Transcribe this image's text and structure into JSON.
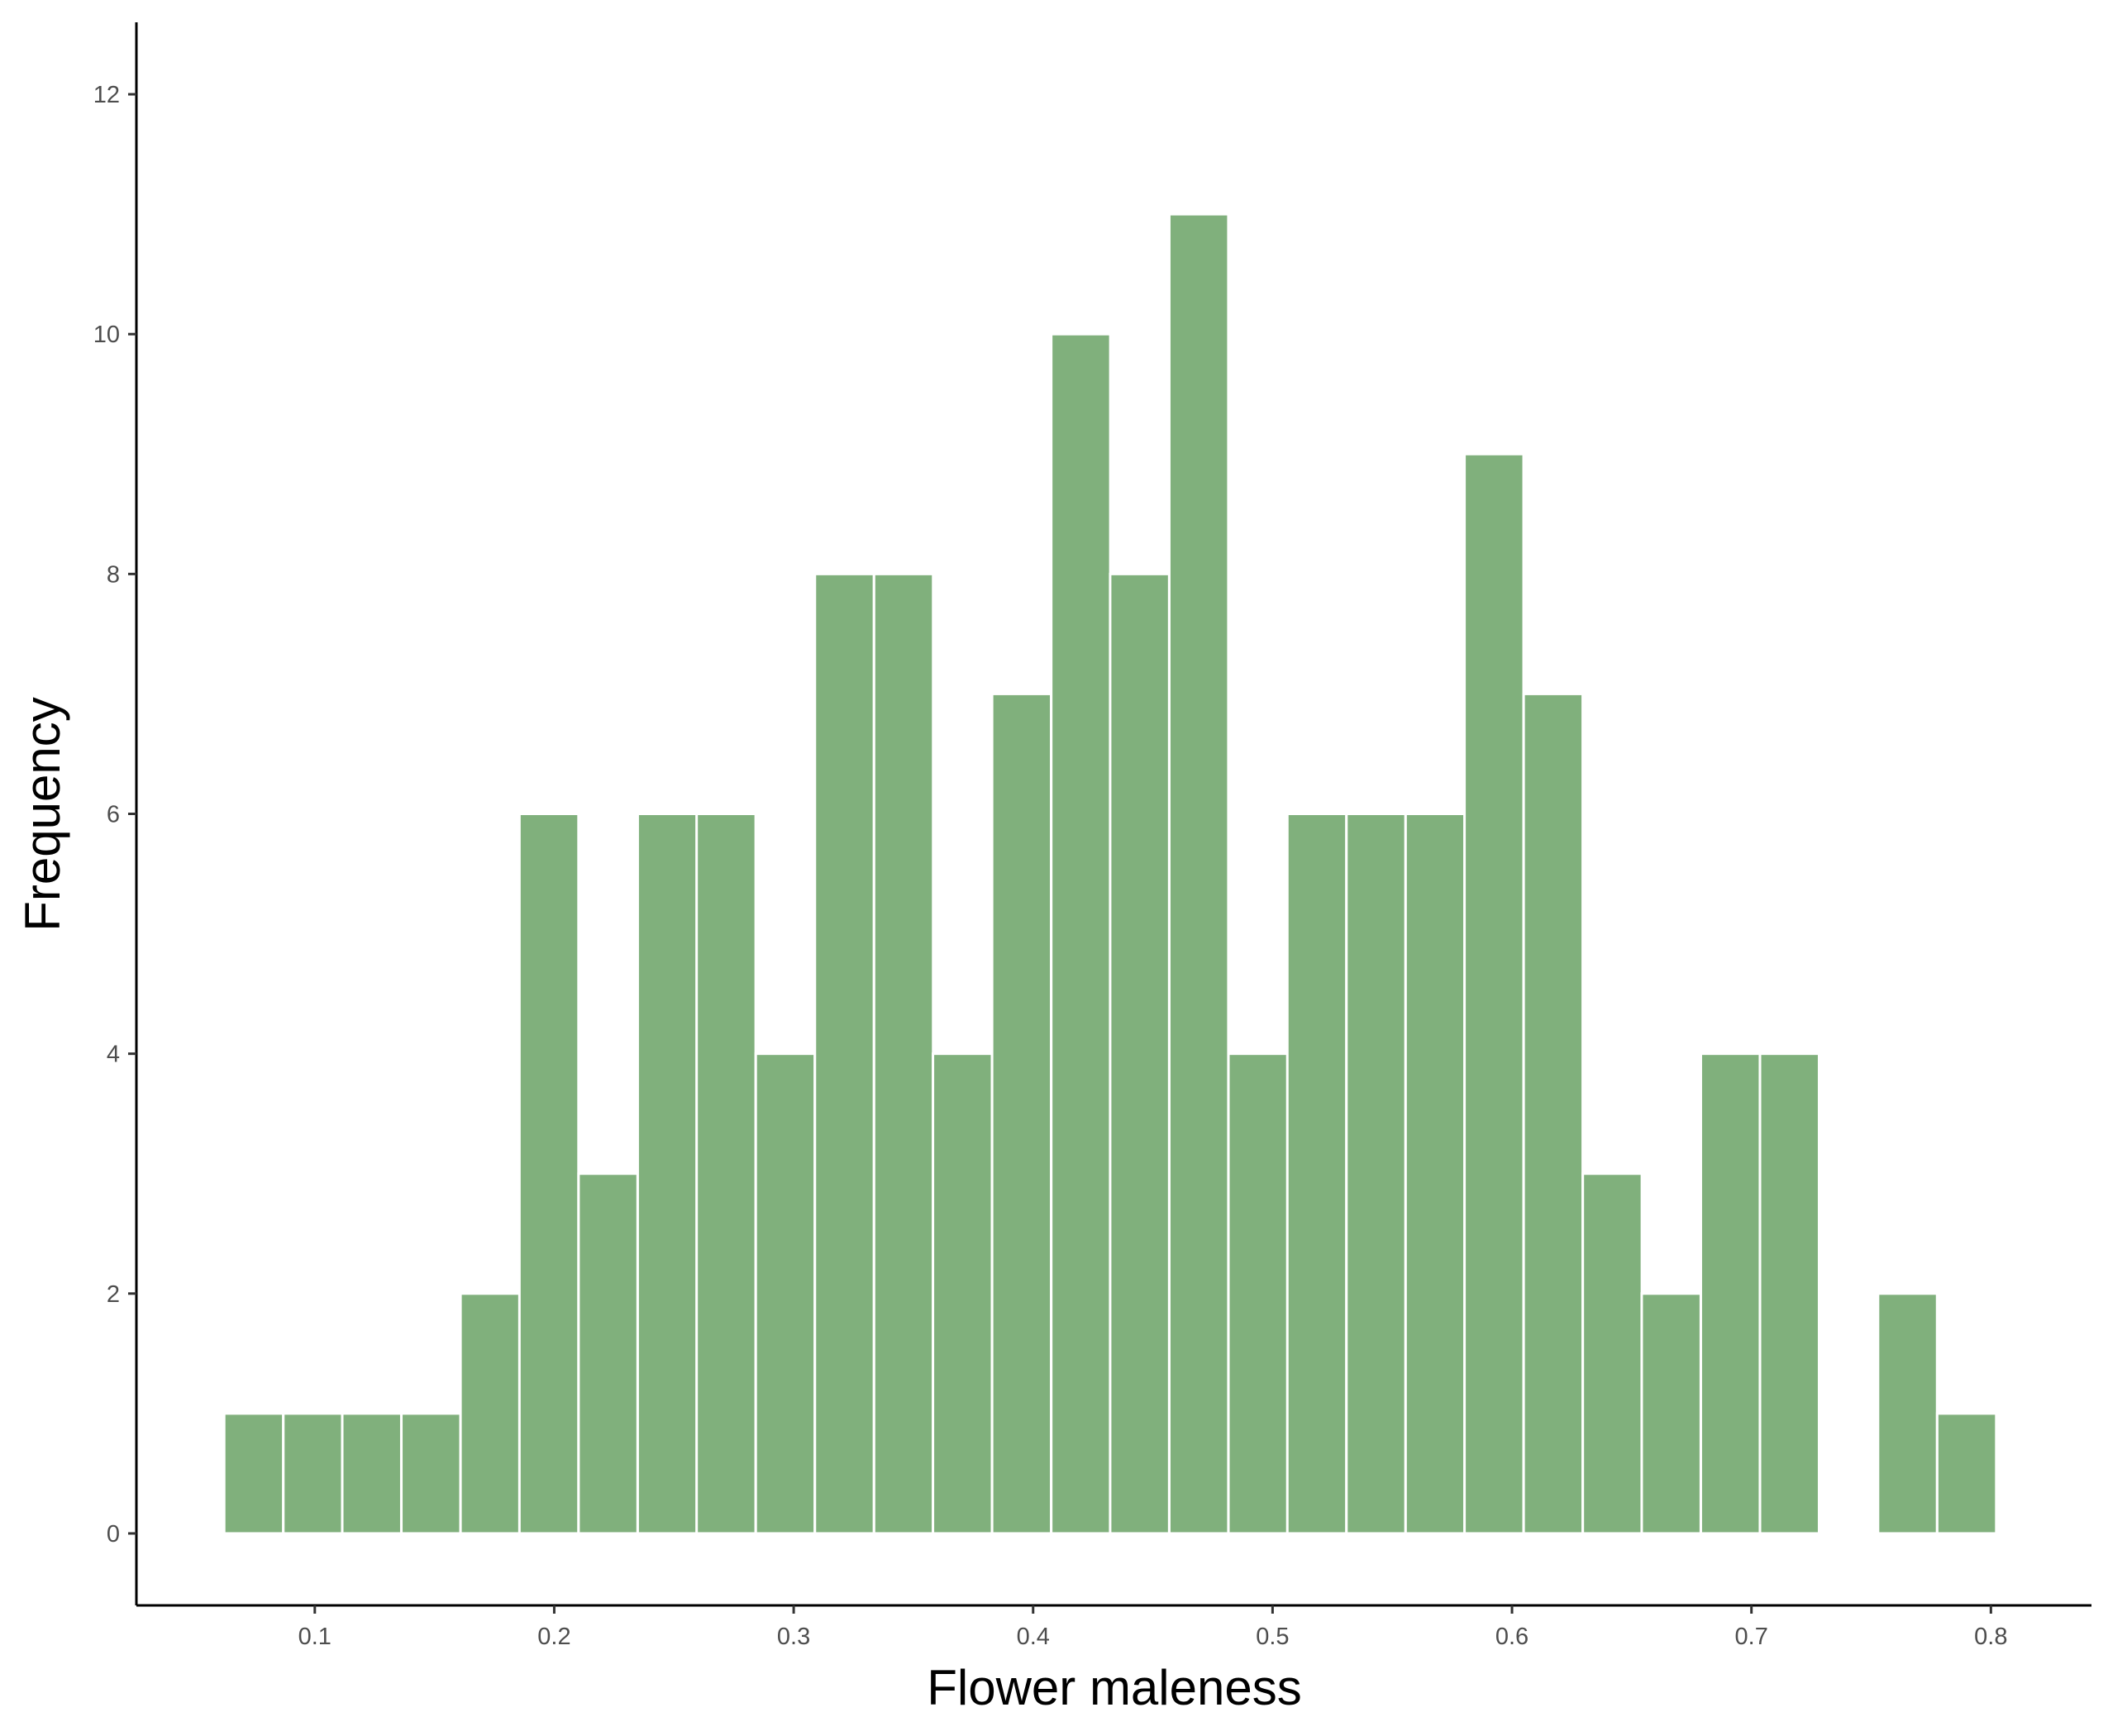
{
  "chart_data": {
    "type": "bar",
    "title": "",
    "xlabel": "Flower maleness",
    "ylabel": "Frequency",
    "xlim": [
      0.0255,
      0.842
    ],
    "ylim": [
      -0.6,
      12.6
    ],
    "grid": false,
    "bar_color": "#80b07c",
    "bar_edge_color": "#ffffff",
    "bin_width": 0.02467,
    "x_ticks": [
      0.1,
      0.2,
      0.3,
      0.4,
      0.5,
      0.6,
      0.7,
      0.8
    ],
    "x_tick_labels": [
      "0.1",
      "0.2",
      "0.3",
      "0.4",
      "0.5",
      "0.6",
      "0.7",
      "0.8"
    ],
    "y_ticks": [
      0,
      2,
      4,
      6,
      8,
      10,
      12
    ],
    "y_tick_labels": [
      "0",
      "2",
      "4",
      "6",
      "8",
      "10",
      "12"
    ],
    "x": [
      0.0745,
      0.0992,
      0.1238,
      0.1485,
      0.1732,
      0.1978,
      0.2225,
      0.2472,
      0.2718,
      0.2965,
      0.3212,
      0.3459,
      0.3705,
      0.3952,
      0.4199,
      0.4445,
      0.4692,
      0.4939,
      0.5185,
      0.5432,
      0.5679,
      0.5925,
      0.6172,
      0.6419,
      0.6665,
      0.6912,
      0.7159,
      0.7405,
      0.7652,
      0.7899
    ],
    "values": [
      1,
      1,
      1,
      1,
      2,
      6,
      3,
      6,
      6,
      4,
      8,
      8,
      4,
      7,
      10,
      8,
      11,
      4,
      6,
      6,
      6,
      9,
      7,
      3,
      2,
      4,
      4,
      0,
      2,
      1
    ]
  }
}
